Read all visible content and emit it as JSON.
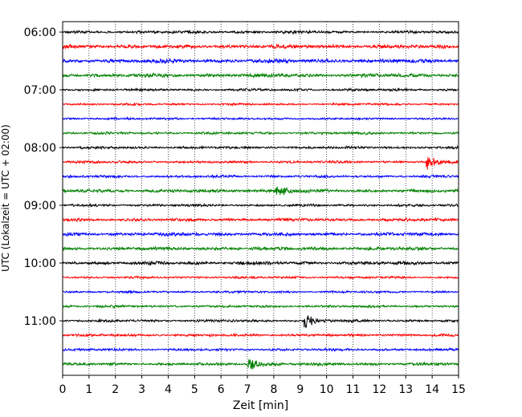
{
  "chart_data": {
    "type": "line",
    "title": "",
    "xlabel": "Zeit  [min]",
    "ylabel": "UTC (Lokalzeit = UTC + 02:00)",
    "xlim": [
      0,
      15
    ],
    "x_ticks": [
      "0",
      "1",
      "2",
      "3",
      "4",
      "5",
      "6",
      "7",
      "8",
      "9",
      "10",
      "11",
      "12",
      "13",
      "14",
      "15"
    ],
    "y_tick_labels": [
      "06:00",
      "07:00",
      "08:00",
      "09:00",
      "10:00",
      "11:00"
    ],
    "grid": "vertical dotted",
    "trace_interval_minutes": 15,
    "color_cycle": [
      "#000000",
      "#ff0000",
      "#0000ff",
      "#008000"
    ],
    "traces": [
      {
        "start": "06:00",
        "color": "#000000",
        "amplitude": 1.0
      },
      {
        "start": "06:15",
        "color": "#ff0000",
        "amplitude": 1.4
      },
      {
        "start": "06:30",
        "color": "#0000ff",
        "amplitude": 1.4
      },
      {
        "start": "06:45",
        "color": "#008000",
        "amplitude": 1.3
      },
      {
        "start": "07:00",
        "color": "#000000",
        "amplitude": 0.9
      },
      {
        "start": "07:15",
        "color": "#ff0000",
        "amplitude": 0.8
      },
      {
        "start": "07:30",
        "color": "#0000ff",
        "amplitude": 0.8
      },
      {
        "start": "07:45",
        "color": "#008000",
        "amplitude": 0.9
      },
      {
        "start": "08:00",
        "color": "#000000",
        "amplitude": 0.9
      },
      {
        "start": "08:15",
        "color": "#ff0000",
        "amplitude": 0.9,
        "event_min": 13.8
      },
      {
        "start": "08:30",
        "color": "#0000ff",
        "amplitude": 0.9
      },
      {
        "start": "08:45",
        "color": "#008000",
        "amplitude": 1.2,
        "event_min": 8.1
      },
      {
        "start": "09:00",
        "color": "#000000",
        "amplitude": 0.9
      },
      {
        "start": "09:15",
        "color": "#ff0000",
        "amplitude": 1.1
      },
      {
        "start": "09:30",
        "color": "#0000ff",
        "amplitude": 1.2
      },
      {
        "start": "09:45",
        "color": "#008000",
        "amplitude": 1.2
      },
      {
        "start": "10:00",
        "color": "#000000",
        "amplitude": 1.2
      },
      {
        "start": "10:15",
        "color": "#ff0000",
        "amplitude": 0.8
      },
      {
        "start": "10:30",
        "color": "#0000ff",
        "amplitude": 0.8
      },
      {
        "start": "10:45",
        "color": "#008000",
        "amplitude": 0.9
      },
      {
        "start": "11:00",
        "color": "#000000",
        "amplitude": 0.9,
        "event_min": 9.15
      },
      {
        "start": "11:15",
        "color": "#ff0000",
        "amplitude": 0.9
      },
      {
        "start": "11:30",
        "color": "#0000ff",
        "amplitude": 0.9
      },
      {
        "start": "11:45",
        "color": "#008000",
        "amplitude": 1.0,
        "event_min": 7.05
      }
    ]
  }
}
